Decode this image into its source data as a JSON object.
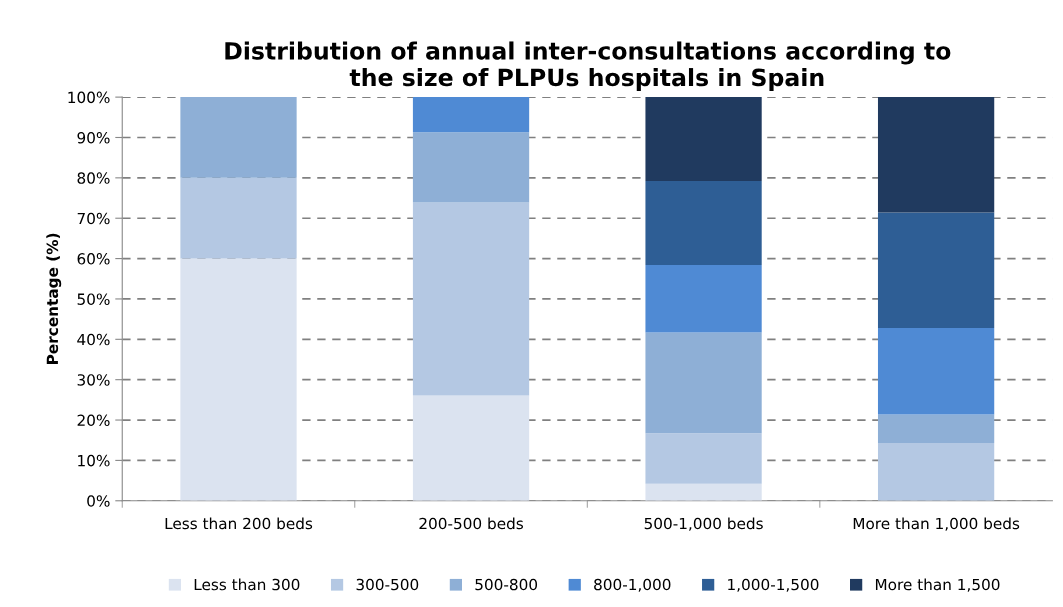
{
  "chart_data": {
    "type": "bar",
    "stacked": true,
    "title": "Distribution of annual inter-consultations according to\nthe size of PLPUs hospitals in Spain",
    "ylabel": "Percentage (%)",
    "categories": [
      "Less than 200 beds",
      "200-500 beds",
      "500-1,000 beds",
      "More than 1,000 beds"
    ],
    "series": [
      {
        "name": "Less than 300",
        "color": "#dbe3f0",
        "values": [
          60,
          26.1,
          4.2,
          0
        ]
      },
      {
        "name": "300-500",
        "color": "#b4c8e3",
        "values": [
          20,
          47.8,
          12.5,
          14.3
        ]
      },
      {
        "name": "500-800",
        "color": "#8eafd6",
        "values": [
          20,
          17.4,
          25,
          7.1
        ]
      },
      {
        "name": "800-1,000",
        "color": "#4f8ad4",
        "values": [
          0,
          8.7,
          16.7,
          21.4
        ]
      },
      {
        "name": "1,000-1,500",
        "color": "#2e5e95",
        "values": [
          0,
          0,
          20.8,
          28.6
        ]
      },
      {
        "name": "More than 1,500",
        "color": "#203a5f",
        "values": [
          0,
          0,
          20.8,
          28.6
        ]
      }
    ],
    "ylim": [
      0,
      100
    ],
    "yticks": [
      {
        "value": 0,
        "label": "0%"
      },
      {
        "value": 10,
        "label": "10%"
      },
      {
        "value": 20,
        "label": "20%"
      },
      {
        "value": 30,
        "label": "30%"
      },
      {
        "value": 40,
        "label": "40%"
      },
      {
        "value": 50,
        "label": "50%"
      },
      {
        "value": 60,
        "label": "60%"
      },
      {
        "value": 70,
        "label": "70%"
      },
      {
        "value": 80,
        "label": "80%"
      },
      {
        "value": 90,
        "label": "90%"
      },
      {
        "value": 100,
        "label": "100%"
      }
    ],
    "grid": "y",
    "legend": "bottom"
  }
}
